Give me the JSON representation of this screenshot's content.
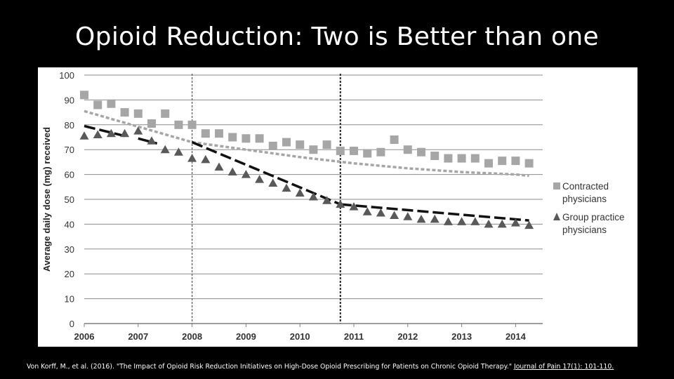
{
  "slide": {
    "title": "Opioid Reduction: Two is Better than one",
    "citation_text": "Von Korff, M., et al. (2016). \"The Impact of Opioid Risk Reduction Initiatives on High-Dose Opioid Prescribing for Patients on Chronic Opioid Therapy.\" ",
    "citation_journal": "Journal of Pain 17(1): 101-110."
  },
  "chart_data": {
    "type": "scatter",
    "title": "",
    "xlabel": "",
    "ylabel": "Average daily dose (mg) received",
    "xlim": [
      2006,
      2014.5
    ],
    "ylim": [
      0,
      100
    ],
    "yticks": [
      0,
      10,
      20,
      30,
      40,
      50,
      60,
      70,
      80,
      90,
      100
    ],
    "xticks": [
      "2006",
      "2007",
      "2008",
      "2009",
      "2010",
      "2011",
      "2012",
      "2013",
      "2014"
    ],
    "grid": "horizontal",
    "legend_position": "right",
    "vertical_markers": [
      2008,
      2010.75
    ],
    "series": [
      {
        "name": "Contracted physicians",
        "marker": "square",
        "color": "#a6a6a6",
        "x": [
          2006,
          2006.25,
          2006.5,
          2006.75,
          2007,
          2007.25,
          2007.5,
          2007.75,
          2008,
          2008.25,
          2008.5,
          2008.75,
          2009,
          2009.25,
          2009.5,
          2009.75,
          2010,
          2010.25,
          2010.5,
          2010.75,
          2011,
          2011.25,
          2011.5,
          2011.75,
          2012,
          2012.25,
          2012.5,
          2012.75,
          2013,
          2013.25,
          2013.5,
          2013.75,
          2014,
          2014.25
        ],
        "y": [
          92,
          88,
          88.5,
          85,
          84.5,
          80.5,
          84.5,
          80,
          80,
          76.5,
          76.5,
          75,
          74.5,
          74.5,
          71.5,
          73,
          72,
          70,
          72,
          69.5,
          69.5,
          68.5,
          69,
          74,
          70,
          69,
          67.5,
          66.5,
          66.5,
          66.5,
          64.5,
          65.5,
          65.5,
          64.5
        ],
        "trend": [
          {
            "x": [
              2006,
              2008,
              2010,
              2011,
              2012,
              2013,
              2014,
              2014.25
            ],
            "y": [
              85.5,
              73,
              67,
              64.5,
              62.5,
              61,
              60,
              59.5
            ]
          }
        ]
      },
      {
        "name": "Group practice physicians",
        "marker": "triangle",
        "color": "#595959",
        "x": [
          2006,
          2006.25,
          2006.5,
          2006.75,
          2007,
          2007.25,
          2007.5,
          2007.75,
          2008,
          2008.25,
          2008.5,
          2008.75,
          2009,
          2009.25,
          2009.5,
          2009.75,
          2010,
          2010.25,
          2010.5,
          2010.75,
          2011,
          2011.25,
          2011.5,
          2011.75,
          2012,
          2012.25,
          2012.5,
          2012.75,
          2013,
          2013.25,
          2013.5,
          2013.75,
          2014,
          2014.25
        ],
        "y": [
          75.5,
          76,
          76.5,
          76.5,
          77.5,
          73.5,
          70,
          69,
          66.5,
          66,
          63,
          61,
          60,
          58,
          56.5,
          54.5,
          52.5,
          51,
          49.5,
          48,
          47,
          45,
          44.5,
          43.5,
          43,
          42,
          42,
          41,
          41,
          41,
          40,
          40,
          40.5,
          39.5
        ],
        "trend": [
          {
            "x": [
              2006,
              2006.75
            ],
            "y": [
              79.5,
              75.5
            ]
          },
          {
            "x": [
              2007,
              2007.35
            ],
            "y": [
              74.5,
              72.5
            ]
          },
          {
            "x": [
              2008,
              2010.75
            ],
            "y": [
              73,
              48
            ]
          },
          {
            "x": [
              2010.75,
              2014.25
            ],
            "y": [
              48,
              41.5
            ]
          }
        ]
      }
    ]
  }
}
